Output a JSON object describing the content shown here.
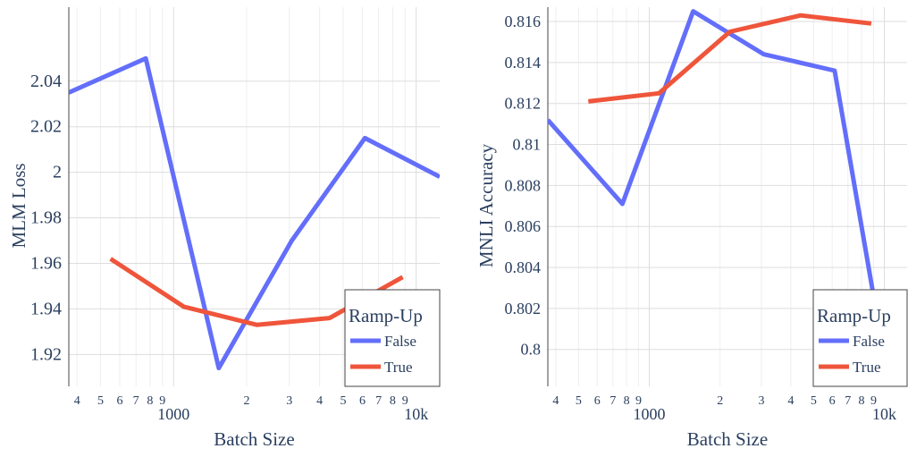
{
  "chart_data": [
    {
      "type": "line",
      "xlabel": "Batch Size",
      "ylabel": "MLM Loss",
      "xscale": "log",
      "xlim": [
        370,
        12500
      ],
      "ylim": [
        1.906,
        2.0725
      ],
      "yticks": [
        1.92,
        1.94,
        1.96,
        1.98,
        2,
        2.02,
        2.04
      ],
      "ytick_labels": [
        "1.92",
        "1.94",
        "1.96",
        "1.98",
        "2",
        "2.02",
        "2.04"
      ],
      "legend": {
        "title": "Ramp-Up",
        "placement": "bottom-right"
      },
      "series": [
        {
          "name": "False",
          "color": "#636efa",
          "x": [
            370,
            768,
            1536,
            3072,
            6144,
            12500
          ],
          "y": [
            2.035,
            2.05,
            1.914,
            1.97,
            2.015,
            1.998
          ]
        },
        {
          "name": "True",
          "color": "#ef553b",
          "x": [
            550,
            1100,
            2200,
            4400,
            8800
          ],
          "y": [
            1.962,
            1.941,
            1.933,
            1.936,
            1.954
          ]
        }
      ]
    },
    {
      "type": "line",
      "xlabel": "Batch Size",
      "ylabel": "MNLI Accuracy",
      "xscale": "log",
      "xlim": [
        370,
        12500
      ],
      "ylim": [
        0.7982,
        0.8167
      ],
      "yticks": [
        0.8,
        0.802,
        0.804,
        0.806,
        0.808,
        0.81,
        0.812,
        0.814,
        0.816
      ],
      "ytick_labels": [
        "0.8",
        "0.802",
        "0.804",
        "0.806",
        "0.808",
        "0.81",
        "0.812",
        "0.814",
        "0.816"
      ],
      "legend": {
        "title": "Ramp-Up",
        "placement": "bottom-right"
      },
      "series": [
        {
          "name": "False",
          "color": "#636efa",
          "x": [
            370,
            768,
            1536,
            3072,
            6144,
            9000
          ],
          "y": [
            0.8112,
            0.8071,
            0.8165,
            0.8144,
            0.8136,
            0.8026
          ]
        },
        {
          "name": "True",
          "color": "#ef553b",
          "x": [
            550,
            1100,
            2200,
            4400,
            8800
          ],
          "y": [
            0.8121,
            0.8125,
            0.8155,
            0.8163,
            0.8159
          ]
        }
      ]
    }
  ],
  "xaxis": {
    "minor_labels": [
      "4",
      "5",
      "6",
      "7",
      "8",
      "9",
      "2",
      "3",
      "4",
      "5",
      "6",
      "7",
      "8",
      "9"
    ],
    "major_labels": [
      "1000",
      "10k"
    ]
  }
}
